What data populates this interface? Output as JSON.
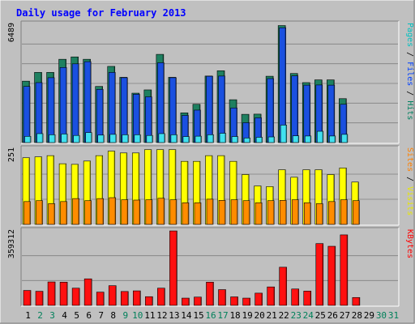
{
  "chart_data": {
    "type": "bar",
    "title": "Daily usage for February 2013",
    "days": [
      "1",
      "2",
      "3",
      "4",
      "5",
      "6",
      "7",
      "8",
      "9",
      "10",
      "11",
      "12",
      "13",
      "14",
      "15",
      "16",
      "17",
      "18",
      "19",
      "20",
      "21",
      "22",
      "23",
      "24",
      "25",
      "26",
      "27",
      "28",
      "29",
      "30",
      "31"
    ],
    "weekend_days": [
      2,
      3,
      9,
      10,
      16,
      17,
      23,
      24,
      30,
      31
    ],
    "active_days": 28,
    "panels": [
      {
        "id": "hits",
        "ymax_label": "6489",
        "ymax": 6489,
        "right_label": [
          {
            "text": "Pages",
            "color": "#00c0c0"
          },
          {
            "text": " / ",
            "color": "#000000"
          },
          {
            "text": "Files",
            "color": "#0040ff"
          },
          {
            "text": " / ",
            "color": "#000000"
          },
          {
            "text": "Hits",
            "color": "#008060"
          }
        ],
        "series": [
          {
            "name": "Hits",
            "color": "#1e8060",
            "values": [
              3370,
              3850,
              3850,
              4570,
              4700,
              4570,
              3080,
              4180,
              3580,
              2710,
              2890,
              4840,
              3580,
              1630,
              2100,
              3650,
              3940,
              2350,
              1550,
              1560,
              3640,
              6420,
              3790,
              3290,
              3440,
              3440,
              2410,
              0,
              0,
              0,
              0
            ]
          },
          {
            "name": "Files",
            "color": "#1a50e0",
            "values": [
              3080,
              3290,
              3560,
              4120,
              4320,
              4440,
              2920,
              3850,
              3560,
              2650,
              2510,
              4380,
              3560,
              1490,
              1780,
              3640,
              3650,
              1900,
              1090,
              1360,
              3510,
              6300,
              3660,
              3150,
              3160,
              3150,
              2100,
              0,
              0,
              0,
              0
            ]
          },
          {
            "name": "Pages",
            "color": "#40e0f0",
            "values": [
              340,
              490,
              430,
              470,
              390,
              550,
              410,
              450,
              430,
              430,
              390,
              490,
              430,
              330,
              350,
              430,
              510,
              330,
              250,
              290,
              310,
              960,
              370,
              360,
              620,
              360,
              450,
              0,
              0,
              0,
              0
            ]
          }
        ]
      },
      {
        "id": "visits",
        "ymax_label": "251",
        "ymax": 251,
        "right_label": [
          {
            "text": "Sites",
            "color": "#ff8000"
          },
          {
            "text": " / ",
            "color": "#000000"
          },
          {
            "text": "Visits",
            "color": "#e8e800"
          }
        ],
        "series": [
          {
            "name": "Visits",
            "color": "#ffff00",
            "values": [
              222,
              225,
              229,
              202,
              200,
              211,
              229,
              244,
              238,
              238,
              249,
              249,
              249,
              210,
              210,
              229,
              229,
              210,
              166,
              128,
              126,
              182,
              157,
              182,
              182,
              166,
              188,
              141,
              0,
              0,
              0
            ]
          },
          {
            "name": "Sites",
            "color": "#ff8c00",
            "values": [
              76,
              79,
              69,
              76,
              86,
              79,
              86,
              89,
              82,
              81,
              82,
              87,
              82,
              72,
              72,
              84,
              80,
              82,
              79,
              72,
              79,
              80,
              82,
              72,
              69,
              76,
              82,
              79,
              0,
              0,
              0
            ]
          }
        ]
      },
      {
        "id": "kbytes",
        "ymax_label": "359312",
        "ymax": 359312,
        "right_label": [
          {
            "text": "KBytes",
            "color": "#ff0000"
          }
        ],
        "series": [
          {
            "name": "KBytes",
            "color": "#ff1010",
            "values": [
              72000,
              68000,
              113000,
              112000,
              83000,
              128000,
              64000,
              95000,
              67000,
              70000,
              42000,
              83000,
              359000,
              35000,
              40000,
              112000,
              76000,
              41000,
              35000,
              59000,
              89000,
              184000,
              79000,
              69000,
              298000,
              285000,
              340000,
              38000,
              0,
              0,
              0
            ]
          }
        ]
      }
    ]
  }
}
